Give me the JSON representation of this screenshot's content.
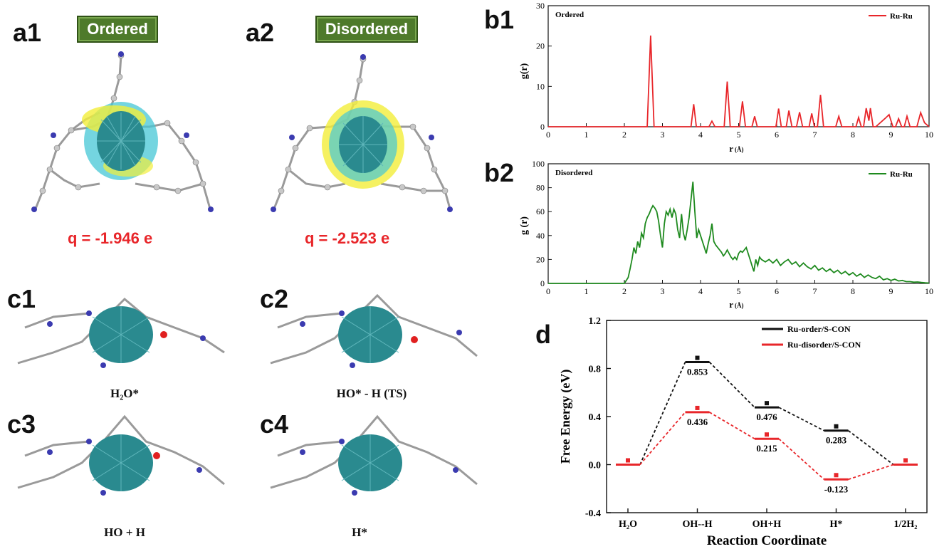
{
  "panels": {
    "a1": {
      "label": "a1",
      "badge": "Ordered",
      "charge": "q = -1.946 e"
    },
    "a2": {
      "label": "a2",
      "badge": "Disordered",
      "charge": "q = -2.523 e"
    },
    "b1": {
      "label": "b1"
    },
    "b2": {
      "label": "b2"
    },
    "c1": {
      "label": "c1",
      "caption": "H₂O*"
    },
    "c2": {
      "label": "c2",
      "caption": "HO* - H (TS)"
    },
    "c3": {
      "label": "c3",
      "caption": "HO + H"
    },
    "c4": {
      "label": "c4",
      "caption": "H*"
    },
    "d": {
      "label": "d"
    }
  },
  "colors": {
    "ordered": "#e8262a",
    "disordered": "#1e8a1e",
    "black": "#111111",
    "badge": "#4e7a2b",
    "ru": "#2a8a8f",
    "carbon": "#8c8c8c",
    "nitrogen": "#3b3bb0",
    "oxygen": "#e02020",
    "density_yellow": "#f2ee3a",
    "density_cyan": "#46c7d6"
  },
  "chart_data": [
    {
      "id": "b1",
      "type": "line",
      "title": "Ordered",
      "xlabel": "r",
      "xunit": "(Å)",
      "ylabel": "g(r)",
      "xlim": [
        0,
        10
      ],
      "ylim": [
        0,
        30
      ],
      "xticks": [
        0,
        1,
        2,
        3,
        4,
        5,
        6,
        7,
        8,
        9,
        10
      ],
      "yticks": [
        0,
        10,
        20,
        30
      ],
      "legend": "top-right",
      "series": [
        {
          "name": "Ru-Ru",
          "x": [
            0,
            2.6,
            2.69,
            2.78,
            3.75,
            3.82,
            3.89,
            4.22,
            4.3,
            4.38,
            4.62,
            4.7,
            4.78,
            5.02,
            5.1,
            5.18,
            5.35,
            5.42,
            5.49,
            5.98,
            6.05,
            6.12,
            6.25,
            6.32,
            6.4,
            6.52,
            6.6,
            6.68,
            6.85,
            6.92,
            6.99,
            7.07,
            7.15,
            7.23,
            7.55,
            7.63,
            7.71,
            8.08,
            8.15,
            8.22,
            8.28,
            8.35,
            8.42,
            8.46,
            8.53,
            8.6,
            8.85,
            8.95,
            9.05,
            9.12,
            9.2,
            9.28,
            9.35,
            9.42,
            9.5,
            9.68,
            9.78,
            9.88,
            10
          ],
          "y": [
            0,
            0,
            22.6,
            0,
            0,
            5.6,
            0,
            0,
            1.4,
            0,
            0,
            11.2,
            0,
            0,
            6.3,
            0,
            0,
            2.6,
            0,
            0,
            4.5,
            0,
            0,
            4.0,
            0,
            0,
            3.6,
            0,
            0,
            3.3,
            0,
            0,
            7.9,
            0,
            0,
            2.6,
            0,
            0,
            2.3,
            0,
            0,
            4.6,
            1.5,
            4.6,
            0,
            0,
            2.1,
            3.0,
            0,
            0,
            2.0,
            0,
            0,
            2.6,
            0,
            0,
            3.5,
            1.0,
            0
          ]
        }
      ]
    },
    {
      "id": "b2",
      "type": "line",
      "title": "Disordered",
      "xlabel": "r",
      "xunit": "(Å)",
      "ylabel": "g (r)",
      "xlim": [
        0,
        10
      ],
      "ylim": [
        0,
        100
      ],
      "xticks": [
        0,
        1,
        2,
        3,
        4,
        5,
        6,
        7,
        8,
        9,
        10
      ],
      "yticks": [
        0,
        20,
        40,
        60,
        80,
        100
      ],
      "legend": "top-right",
      "series": [
        {
          "name": "Ru-Ru",
          "x": [
            0,
            2.0,
            2.1,
            2.15,
            2.2,
            2.25,
            2.3,
            2.35,
            2.4,
            2.45,
            2.5,
            2.55,
            2.6,
            2.65,
            2.7,
            2.75,
            2.8,
            2.85,
            2.9,
            2.95,
            3.0,
            3.05,
            3.1,
            3.15,
            3.2,
            3.25,
            3.3,
            3.35,
            3.4,
            3.45,
            3.5,
            3.55,
            3.6,
            3.65,
            3.7,
            3.75,
            3.8,
            3.85,
            3.9,
            3.95,
            4.0,
            4.05,
            4.1,
            4.15,
            4.2,
            4.25,
            4.3,
            4.35,
            4.4,
            4.45,
            4.5,
            4.55,
            4.6,
            4.65,
            4.7,
            4.75,
            4.8,
            4.85,
            4.9,
            4.95,
            5.0,
            5.05,
            5.1,
            5.15,
            5.2,
            5.25,
            5.3,
            5.35,
            5.4,
            5.45,
            5.5,
            5.55,
            5.6,
            5.7,
            5.8,
            5.9,
            6.0,
            6.1,
            6.2,
            6.3,
            6.4,
            6.5,
            6.6,
            6.7,
            6.8,
            6.9,
            7.0,
            7.1,
            7.2,
            7.3,
            7.4,
            7.5,
            7.6,
            7.7,
            7.8,
            7.9,
            8.0,
            8.1,
            8.2,
            8.3,
            8.4,
            8.5,
            8.6,
            8.7,
            8.8,
            8.9,
            9.0,
            9.1,
            9.2,
            9.3,
            9.4,
            9.5,
            9.6,
            9.7,
            9.8,
            9.9,
            10
          ],
          "y": [
            0,
            0,
            5,
            12,
            20,
            30,
            25,
            35,
            30,
            42,
            38,
            50,
            55,
            58,
            62,
            65,
            63,
            60,
            52,
            40,
            30,
            50,
            60,
            57,
            62,
            55,
            62,
            58,
            45,
            38,
            58,
            42,
            36,
            45,
            55,
            70,
            85,
            60,
            38,
            45,
            40,
            35,
            30,
            25,
            33,
            40,
            50,
            35,
            32,
            30,
            28,
            26,
            23,
            25,
            28,
            25,
            22,
            20,
            22,
            20,
            25,
            27,
            26,
            28,
            30,
            25,
            20,
            15,
            10,
            20,
            15,
            22,
            20,
            18,
            20,
            17,
            20,
            15,
            18,
            20,
            16,
            18,
            14,
            17,
            14,
            12,
            15,
            11,
            13,
            10,
            12,
            9,
            11,
            8,
            10,
            7,
            9,
            6,
            8,
            5,
            7,
            5,
            4,
            6,
            3,
            4,
            2.5,
            3.5,
            2,
            2.5,
            1.5,
            1.5,
            1,
            1.2,
            0.8,
            0.5,
            0.3
          ]
        }
      ]
    },
    {
      "id": "d",
      "type": "line",
      "xlabel": "Reaction Coordinate",
      "ylabel": "Free Energy (eV)",
      "categories": [
        "H₂O",
        "OH--H",
        "OH+H",
        "H*",
        "1/2H₂"
      ],
      "ylim": [
        -0.4,
        1.2
      ],
      "yticks": [
        -0.4,
        0.0,
        0.4,
        0.8,
        1.2
      ],
      "legend": "top-right",
      "series": [
        {
          "name": "Ru-order/S-CON",
          "values": [
            0,
            0.853,
            0.476,
            0.283,
            0
          ],
          "labels": [
            "",
            "0.853",
            "0.476",
            "0.283",
            ""
          ]
        },
        {
          "name": "Ru-disorder/S-CON",
          "values": [
            0,
            0.436,
            0.215,
            -0.123,
            0
          ],
          "labels": [
            "",
            "0.436",
            "0.215",
            "-0.123",
            ""
          ]
        }
      ]
    }
  ]
}
